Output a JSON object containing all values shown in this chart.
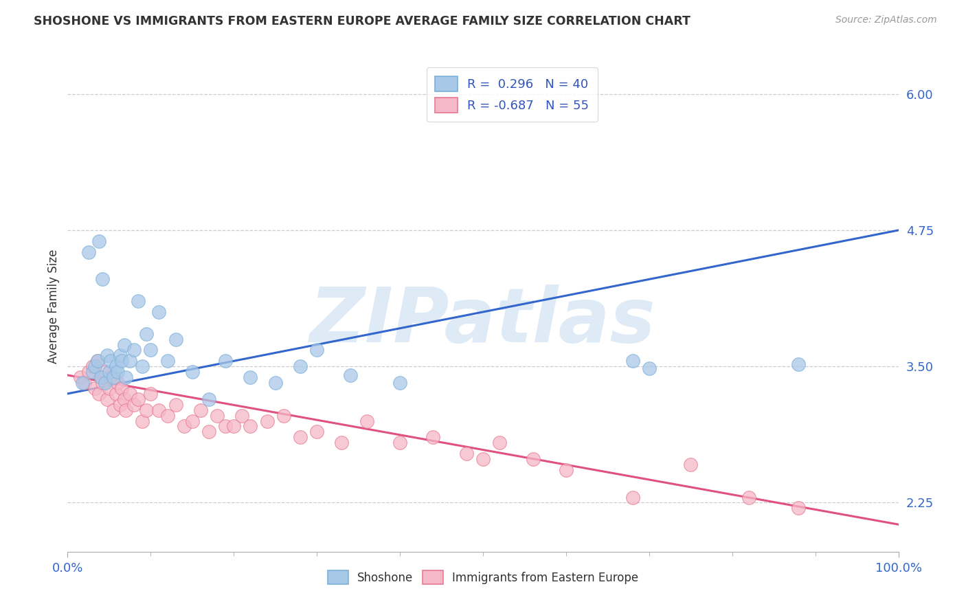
{
  "title": "SHOSHONE VS IMMIGRANTS FROM EASTERN EUROPE AVERAGE FAMILY SIZE CORRELATION CHART",
  "source": "Source: ZipAtlas.com",
  "ylabel": "Average Family Size",
  "xlim": [
    0,
    1.0
  ],
  "ymin": 1.8,
  "ymax": 6.3,
  "ytick_positions": [
    2.25,
    3.5,
    4.75,
    6.0
  ],
  "legend_blue_r": "0.296",
  "legend_blue_n": "40",
  "legend_pink_r": "-0.687",
  "legend_pink_n": "55",
  "blue_scatter_color": "#a8c8e8",
  "blue_edge_color": "#7ab0d8",
  "pink_scatter_color": "#f5b8c8",
  "pink_edge_color": "#e87890",
  "line_blue_color": "#3366cc",
  "line_pink_color": "#e05080",
  "line_blue_x0": 0.0,
  "line_blue_x1": 1.0,
  "line_blue_y0": 3.25,
  "line_blue_y1": 4.75,
  "line_pink_x0": 0.0,
  "line_pink_x1": 1.0,
  "line_pink_y0": 3.42,
  "line_pink_y1": 2.05,
  "watermark": "ZIPatlas",
  "background": "#ffffff",
  "grid_color": "#cccccc",
  "blue_x": [
    0.018,
    0.025,
    0.03,
    0.033,
    0.036,
    0.038,
    0.04,
    0.042,
    0.045,
    0.048,
    0.05,
    0.052,
    0.055,
    0.058,
    0.06,
    0.063,
    0.065,
    0.068,
    0.07,
    0.075,
    0.08,
    0.085,
    0.09,
    0.095,
    0.1,
    0.11,
    0.12,
    0.13,
    0.15,
    0.17,
    0.19,
    0.22,
    0.25,
    0.28,
    0.3,
    0.34,
    0.4,
    0.68,
    0.7,
    0.88
  ],
  "blue_y": [
    3.35,
    4.55,
    3.45,
    3.5,
    3.55,
    4.65,
    3.4,
    4.3,
    3.35,
    3.6,
    3.45,
    3.55,
    3.4,
    3.5,
    3.45,
    3.6,
    3.55,
    3.7,
    3.4,
    3.55,
    3.65,
    4.1,
    3.5,
    3.8,
    3.65,
    4.0,
    3.55,
    3.75,
    3.45,
    3.2,
    3.55,
    3.4,
    3.35,
    3.5,
    3.65,
    3.42,
    3.35,
    3.55,
    3.48,
    3.52
  ],
  "pink_x": [
    0.015,
    0.02,
    0.025,
    0.03,
    0.033,
    0.036,
    0.038,
    0.04,
    0.042,
    0.045,
    0.048,
    0.05,
    0.052,
    0.055,
    0.058,
    0.06,
    0.063,
    0.065,
    0.068,
    0.07,
    0.075,
    0.08,
    0.085,
    0.09,
    0.095,
    0.1,
    0.11,
    0.12,
    0.13,
    0.14,
    0.15,
    0.16,
    0.17,
    0.18,
    0.19,
    0.2,
    0.21,
    0.22,
    0.24,
    0.26,
    0.28,
    0.3,
    0.33,
    0.36,
    0.4,
    0.44,
    0.48,
    0.5,
    0.52,
    0.56,
    0.6,
    0.68,
    0.75,
    0.82,
    0.88
  ],
  "pink_y": [
    3.4,
    3.35,
    3.45,
    3.5,
    3.3,
    3.55,
    3.25,
    3.4,
    3.35,
    3.45,
    3.2,
    3.3,
    3.4,
    3.1,
    3.25,
    3.35,
    3.15,
    3.3,
    3.2,
    3.1,
    3.25,
    3.15,
    3.2,
    3.0,
    3.1,
    3.25,
    3.1,
    3.05,
    3.15,
    2.95,
    3.0,
    3.1,
    2.9,
    3.05,
    2.95,
    2.95,
    3.05,
    2.95,
    3.0,
    3.05,
    2.85,
    2.9,
    2.8,
    3.0,
    2.8,
    2.85,
    2.7,
    2.65,
    2.8,
    2.65,
    2.55,
    2.3,
    2.6,
    2.3,
    2.2
  ]
}
